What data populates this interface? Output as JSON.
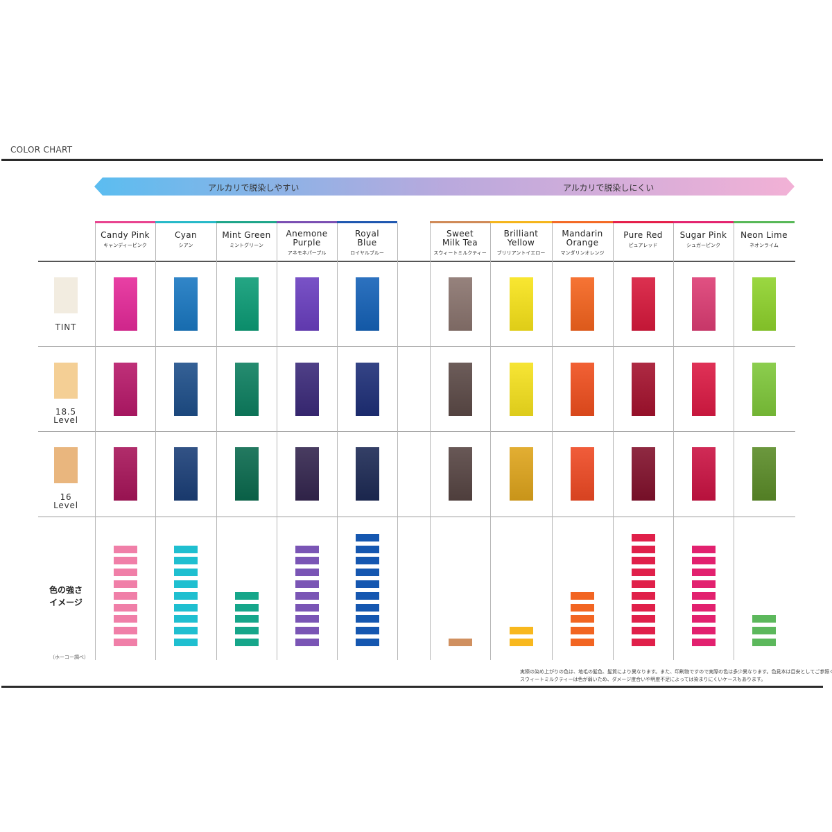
{
  "page_title": "COLOR CHART",
  "arrow": {
    "left_label": "アルカリで脱染しやすい",
    "right_label": "アルカリで脱染しにくい",
    "gradient_colors": [
      "#5bbdf0",
      "#b9a9dd",
      "#f2b1d6"
    ]
  },
  "rows": [
    {
      "label": "TINT",
      "base_color": "#f2ece0"
    },
    {
      "label": "18.5\nLevel",
      "base_color": "#f4cf95"
    },
    {
      "label": "16\nLevel",
      "base_color": "#e9b67e"
    }
  ],
  "intensity_label": "色の強さ\nイメージ",
  "source_note": "（ホーコー調べ）",
  "footnote": [
    "実際の染め上がりの色は、地毛の髪色、髪質により異なります。また、印刷物ですので実際の色は多少異なります。色見本は目安としてご参照ください。",
    "スウィートミルクティーは色が弱いため、ダメージ度合いや明度不足によっては染まりにくいケースもあります。"
  ],
  "chart_data": {
    "type": "table",
    "title": "COLOR CHART",
    "categories": [
      "Candy Pink",
      "Cyan",
      "Mint Green",
      "Anemone Purple",
      "Royal Blue",
      "Sweet Milk Tea",
      "Brilliant Yellow",
      "Mandarin Orange",
      "Pure Red",
      "Sugar Pink",
      "Neon Lime"
    ],
    "colors": [
      {
        "en": "Candy Pink",
        "jp": "キャンディーピンク",
        "accent": "#e8438f",
        "swatches": [
          "#e62a9a",
          "#b8196a",
          "#a8155a"
        ],
        "intensity": 9,
        "intensity_color": "#f07fa8"
      },
      {
        "en": "Cyan",
        "jp": "シアン",
        "accent": "#27b9c8",
        "swatches": [
          "#1a78c2",
          "#1e4f8a",
          "#1b3f78"
        ],
        "intensity": 9,
        "intensity_color": "#1fbfd0"
      },
      {
        "en": "Mint Green",
        "jp": "ミントグリーン",
        "accent": "#1ea58a",
        "swatches": [
          "#0c9c76",
          "#0d7f60",
          "#0a6a4e"
        ],
        "intensity": 5,
        "intensity_color": "#16a68a"
      },
      {
        "en": "Anemone\nPurple",
        "jp": "アネモネパープル",
        "accent": "#7b4fb3",
        "swatches": [
          "#6a3fc0",
          "#3b2a7a",
          "#34264f"
        ],
        "intensity": 9,
        "intensity_color": "#7a55b5"
      },
      {
        "en": "Royal\nBlue",
        "jp": "ロイヤルブルー",
        "accent": "#1f57b0",
        "swatches": [
          "#1562b8",
          "#1e2f78",
          "#1d2a55"
        ],
        "intensity": 10,
        "intensity_color": "#1557b0"
      },
      {
        "en": "Sweet\nMilk Tea",
        "jp": "スウィートミルクティー",
        "accent": "#d08a57",
        "swatches": [
          "#8a746e",
          "#5c4a47",
          "#574543"
        ],
        "intensity": 1,
        "intensity_color": "#d09060"
      },
      {
        "en": "Brilliant\nYellow",
        "jp": "ブリリアントイエロー",
        "accent": "#f5b51b",
        "swatches": [
          "#f8e41a",
          "#f6e21e",
          "#dfa51c"
        ],
        "intensity": 2,
        "intensity_color": "#f8b81e"
      },
      {
        "en": "Mandarin\nOrange",
        "jp": "マンダリンオレンジ",
        "accent": "#f46a25",
        "swatches": [
          "#f5641e",
          "#f04f1e",
          "#ef4a24"
        ],
        "intensity": 5,
        "intensity_color": "#f26522"
      },
      {
        "en": "Pure Red",
        "jp": "ピュアレッド",
        "accent": "#e51f4a",
        "swatches": [
          "#d8193c",
          "#a5122e",
          "#82112c"
        ],
        "intensity": 10,
        "intensity_color": "#e0204a"
      },
      {
        "en": "Sugar Pink",
        "jp": "シュガーピンク",
        "accent": "#e3246f",
        "swatches": [
          "#dd3d74",
          "#dc1a44",
          "#cb1343"
        ],
        "intensity": 9,
        "intensity_color": "#e2216f"
      },
      {
        "en": "Neon Lime",
        "jp": "ネオンライム",
        "accent": "#57b857",
        "swatches": [
          "#8fd32c",
          "#7fc83a",
          "#5b8c28"
        ],
        "intensity": 3,
        "intensity_color": "#5cb85c"
      }
    ],
    "rows": [
      "TINT",
      "18.5 Level",
      "16 Level",
      "色の強さイメージ"
    ],
    "intensity_max": 10
  }
}
